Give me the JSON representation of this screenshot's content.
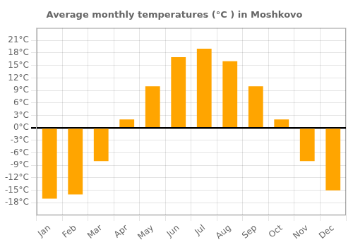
{
  "chart_data": {
    "type": "bar",
    "title": "Average monthly temperatures (°C ) in Moshkovo",
    "categories": [
      "Jan",
      "Feb",
      "Mar",
      "Apr",
      "May",
      "Jun",
      "Jul",
      "Aug",
      "Sep",
      "Oct",
      "Nov",
      "Dec"
    ],
    "values": [
      -17,
      -16,
      -8,
      2,
      10,
      17,
      19,
      16,
      10,
      2,
      -8,
      -15
    ],
    "color": "#FFA500",
    "ylim": [
      -21,
      24
    ],
    "yticks": [
      {
        "value": -18,
        "label": "-18°C"
      },
      {
        "value": -15,
        "label": "-15°C"
      },
      {
        "value": -12,
        "label": "-12°C"
      },
      {
        "value": -9,
        "label": "-9°C"
      },
      {
        "value": -6,
        "label": "-6°C"
      },
      {
        "value": -3,
        "label": "-3°C"
      },
      {
        "value": 0,
        "label": "0°C"
      },
      {
        "value": 3,
        "label": "3°C"
      },
      {
        "value": 6,
        "label": "6°C"
      },
      {
        "value": 9,
        "label": "9°C"
      },
      {
        "value": 12,
        "label": "12°C"
      },
      {
        "value": 15,
        "label": "15°C"
      },
      {
        "value": 18,
        "label": "18°C"
      },
      {
        "value": 21,
        "label": "21°C"
      }
    ],
    "grid": true
  }
}
